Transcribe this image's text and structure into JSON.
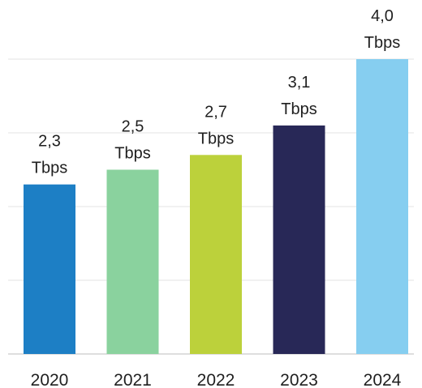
{
  "chart_data": {
    "type": "bar",
    "categories": [
      "2020",
      "2021",
      "2022",
      "2023",
      "2024"
    ],
    "values": [
      2.3,
      2.5,
      2.7,
      3.1,
      4.0
    ],
    "value_labels": [
      "2,3",
      "2,5",
      "2,7",
      "3,1",
      "4,0"
    ],
    "unit": "Tbps",
    "colors": [
      "#1d7fc5",
      "#8ad29e",
      "#bcd13b",
      "#282857",
      "#86cef0"
    ],
    "ylim": [
      0,
      4.0
    ],
    "grid": true,
    "legend": "none",
    "title": "",
    "xlabel": "",
    "ylabel": ""
  }
}
